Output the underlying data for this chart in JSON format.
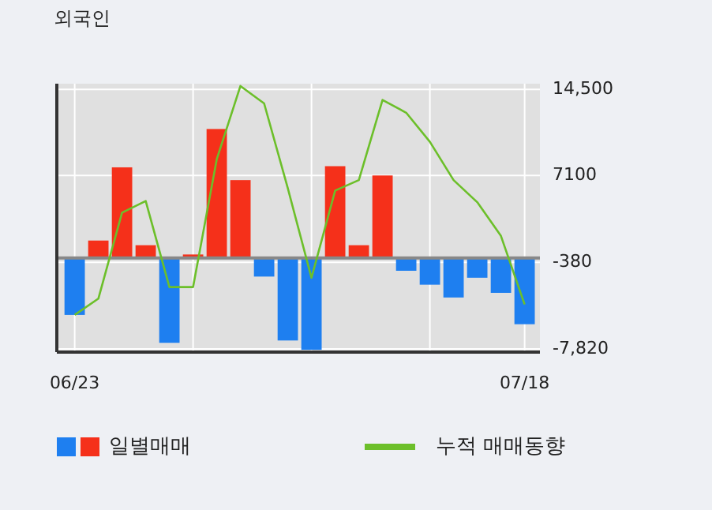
{
  "chart_data": {
    "type": "bar",
    "title": "외국인",
    "categories": [
      "06/23",
      null,
      null,
      null,
      null,
      null,
      null,
      null,
      null,
      null,
      null,
      null,
      null,
      null,
      null,
      null,
      null,
      null,
      null,
      "07/18"
    ],
    "series": [
      {
        "name": "일별매매",
        "colors": [
          "#1e7ff0",
          "#f5301a",
          "#f5301a",
          "#f5301a",
          "#1e7ff0",
          "#f5301a",
          "#f5301a",
          "#f5301a",
          "#1e7ff0",
          "#1e7ff0",
          "#1e7ff0",
          "#f5301a",
          "#f5301a",
          "#f5301a",
          "#1e7ff0",
          "#1e7ff0",
          "#1e7ff0",
          "#1e7ff0",
          "#1e7ff0",
          "#1e7ff0"
        ],
        "values": [
          -4900,
          1500,
          7800,
          1100,
          -7300,
          300,
          11100,
          6700,
          -1600,
          -7100,
          -7900,
          7900,
          1100,
          7100,
          -1100,
          -2300,
          -3400,
          -1700,
          -3000,
          -5700
        ]
      },
      {
        "name": "누적 매매동향",
        "type": "line",
        "color": "#6cbf2a",
        "values": [
          -4900,
          -3500,
          3900,
          4900,
          -2500,
          -2500,
          8500,
          14800,
          13300,
          6000,
          -1700,
          5800,
          6700,
          13600,
          12500,
          10000,
          6700,
          4800,
          1900,
          -4000
        ]
      }
    ],
    "ylim": [
      -8100,
      15000
    ],
    "yticks": [
      {
        "value": 14500,
        "label": "14,500"
      },
      7100,
      -380,
      {
        "value": -7820,
        "label": "-7,820"
      }
    ],
    "grid": true,
    "legend": "bottom"
  }
}
